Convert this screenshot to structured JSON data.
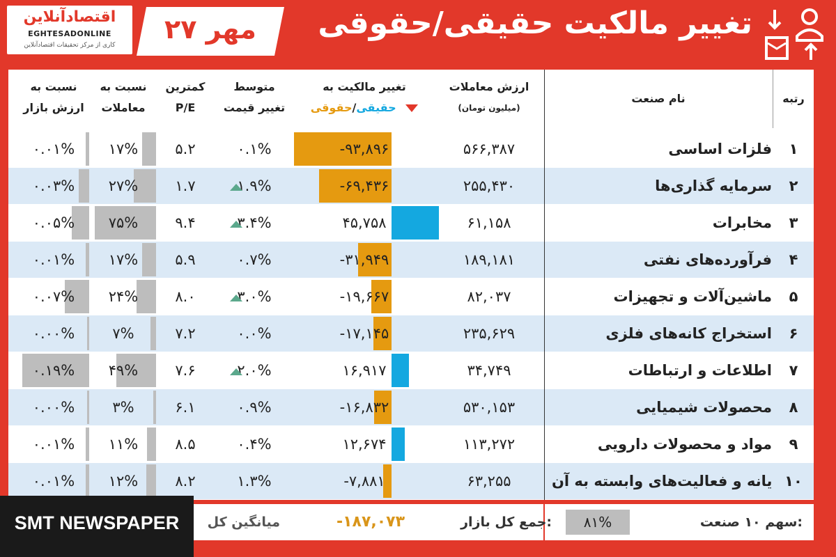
{
  "colors": {
    "background": "#e2382a",
    "orange": "#e59a10",
    "blue": "#14a8e0",
    "gray": "#bdbdbd",
    "row_alt": "#dbe9f6",
    "arrow_up": "#5ba88c",
    "arrow_down": "#e2382a"
  },
  "logo": {
    "name_fa": "اقتصادآنلاین",
    "name_en": "EGHTESADONLINE",
    "tagline": "کاری از مرکز تحقیقات اقتصادآنلاین"
  },
  "header": {
    "date": "۲۷ مهر",
    "title": "تغییر مالکیت حقیقی/حقوقی",
    "icon": "ownership-transfer-icon"
  },
  "columns": {
    "rank": "رتبه",
    "industry": "نام صنعت",
    "trade_value": "ارزش معاملات",
    "trade_value_unit": "(میلیون تومان)",
    "change_title": "تغییر مالکیت به",
    "change_real": "حقیقی",
    "change_sep": "/",
    "change_legal": "حقوقی",
    "avg_line1": "متوسط",
    "avg_line2": "تغییر قیمت",
    "pe_line1": "کمترین",
    "pe_line2": "P/E",
    "ratio_trade_line1": "نسبت به",
    "ratio_trade_line2": "معاملات",
    "ratio_market_line1": "نسبت به",
    "ratio_market_line2": "ارزش بازار"
  },
  "chart_data": {
    "type": "table",
    "title": "تغییر مالکیت حقیقی/حقوقی",
    "rows": [
      {
        "rank": "۱",
        "industry": "فلزات اساسی",
        "trade_value": "۵۶۶,۳۸۷",
        "change": "-۹۳,۸۹۶",
        "change_num": -93896,
        "avg_change": "۰.۱%",
        "arrow": false,
        "pe": "۵.۲",
        "ratio_trade": "۱۷%",
        "ratio_trade_num": 17,
        "ratio_market": "۰.۰۱%",
        "ratio_market_num": 0.01
      },
      {
        "rank": "۲",
        "industry": "سرمایه گذاری‌ها",
        "trade_value": "۲۵۵,۴۳۰",
        "change": "-۶۹,۴۳۶",
        "change_num": -69436,
        "avg_change": "۱.۹%",
        "arrow": true,
        "pe": "۱.۷",
        "ratio_trade": "۲۷%",
        "ratio_trade_num": 27,
        "ratio_market": "۰.۰۳%",
        "ratio_market_num": 0.03
      },
      {
        "rank": "۳",
        "industry": "مخابرات",
        "trade_value": "۶۱,۱۵۸",
        "change": "۴۵,۷۵۸",
        "change_num": 45758,
        "avg_change": "۳.۴%",
        "arrow": true,
        "pe": "۹.۴",
        "ratio_trade": "۷۵%",
        "ratio_trade_num": 75,
        "ratio_market": "۰.۰۵%",
        "ratio_market_num": 0.05
      },
      {
        "rank": "۴",
        "industry": "فرآورده‌های نفتی",
        "trade_value": "۱۸۹,۱۸۱",
        "change": "-۳۱,۹۴۹",
        "change_num": -31949,
        "avg_change": "۰.۷%",
        "arrow": false,
        "pe": "۵.۹",
        "ratio_trade": "۱۷%",
        "ratio_trade_num": 17,
        "ratio_market": "۰.۰۱%",
        "ratio_market_num": 0.01
      },
      {
        "rank": "۵",
        "industry": "ماشین‌آلات و تجهیزات",
        "trade_value": "۸۲,۰۳۷",
        "change": "-۱۹,۶۶۷",
        "change_num": -19667,
        "avg_change": "۳.۰%",
        "arrow": true,
        "pe": "۸.۰",
        "ratio_trade": "۲۴%",
        "ratio_trade_num": 24,
        "ratio_market": "۰.۰۷%",
        "ratio_market_num": 0.07
      },
      {
        "rank": "۶",
        "industry": "استخراج کانه‌های فلزی",
        "trade_value": "۲۳۵,۶۲۹",
        "change": "-۱۷,۱۴۵",
        "change_num": -17145,
        "avg_change": "۰.۰%",
        "arrow": false,
        "pe": "۷.۲",
        "ratio_trade": "۷%",
        "ratio_trade_num": 7,
        "ratio_market": "۰.۰۰%",
        "ratio_market_num": 0.004
      },
      {
        "rank": "۷",
        "industry": "اطلاعات و ارتباطات",
        "trade_value": "۳۴,۷۴۹",
        "change": "۱۶,۹۱۷",
        "change_num": 16917,
        "avg_change": "۲.۰%",
        "arrow": true,
        "pe": "۷.۶",
        "ratio_trade": "۴۹%",
        "ratio_trade_num": 49,
        "ratio_market": "۰.۱۹%",
        "ratio_market_num": 0.19
      },
      {
        "rank": "۸",
        "industry": "محصولات شیمیایی",
        "trade_value": "۵۳۰,۱۵۳",
        "change": "-۱۶,۸۳۲",
        "change_num": -16832,
        "avg_change": "۰.۹%",
        "arrow": false,
        "pe": "۶.۱",
        "ratio_trade": "۳%",
        "ratio_trade_num": 3,
        "ratio_market": "۰.۰۰%",
        "ratio_market_num": 0.0
      },
      {
        "rank": "۹",
        "industry": "مواد و محصولات دارویی",
        "trade_value": "۱۱۳,۲۷۲",
        "change": "۱۲,۶۷۴",
        "change_num": 12674,
        "avg_change": "۰.۴%",
        "arrow": false,
        "pe": "۸.۵",
        "ratio_trade": "۱۱%",
        "ratio_trade_num": 11,
        "ratio_market": "۰.۰۱%",
        "ratio_market_num": 0.01
      },
      {
        "rank": "۱۰",
        "industry": "رایانه و فعالیت‌های وابسته به آن",
        "trade_value": "۶۳,۲۵۵",
        "change": "-۷,۸۸۱",
        "change_num": -7881,
        "avg_change": "۱.۳%",
        "arrow": false,
        "pe": "۸.۲",
        "ratio_trade": "۱۲%",
        "ratio_trade_num": 12,
        "ratio_market": "۰.۰۱%",
        "ratio_market_num": 0.01
      }
    ]
  },
  "footer": {
    "share_label": "سهم ۱۰ صنعت:",
    "share_value": "۸۱%",
    "total_label": "جمع کل بازار:",
    "total_value": "-۱۸۷,۰۷۳",
    "avg_label": "میانگین کل"
  },
  "watermark": {
    "text": "SMT NEWSPAPER"
  }
}
